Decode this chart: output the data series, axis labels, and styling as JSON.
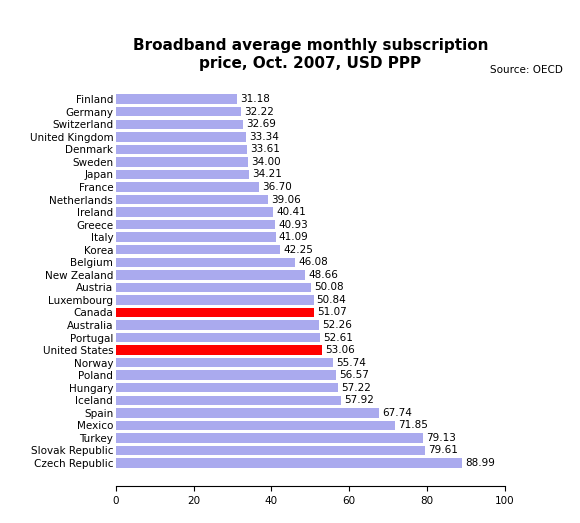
{
  "title": "Broadband average monthly subscription\nprice, Oct. 2007, USD PPP",
  "source": "Source: OECD",
  "countries": [
    "Finland",
    "Germany",
    "Switzerland",
    "United Kingdom",
    "Denmark",
    "Sweden",
    "Japan",
    "France",
    "Netherlands",
    "Ireland",
    "Greece",
    "Italy",
    "Korea",
    "Belgium",
    "New Zealand",
    "Austria",
    "Luxembourg",
    "Canada",
    "Australia",
    "Portugal",
    "United States",
    "Norway",
    "Poland",
    "Hungary",
    "Iceland",
    "Spain",
    "Mexico",
    "Turkey",
    "Slovak Republic",
    "Czech Republic"
  ],
  "values": [
    31.18,
    32.22,
    32.69,
    33.34,
    33.61,
    34.0,
    34.21,
    36.7,
    39.06,
    40.41,
    40.93,
    41.09,
    42.25,
    46.08,
    48.66,
    50.08,
    50.84,
    51.07,
    52.26,
    52.61,
    53.06,
    55.74,
    56.57,
    57.22,
    57.92,
    67.74,
    71.85,
    79.13,
    79.61,
    88.99
  ],
  "highlight_countries": [
    "Canada",
    "United States"
  ],
  "highlight_color": "#ff0000",
  "normal_color": "#aaaaee",
  "xlim": [
    0,
    100
  ],
  "xticks": [
    0,
    20,
    40,
    60,
    80,
    100
  ],
  "background_color": "#ffffff",
  "title_fontsize": 11,
  "label_fontsize": 7.5,
  "value_fontsize": 7.5,
  "source_fontsize": 7.5
}
